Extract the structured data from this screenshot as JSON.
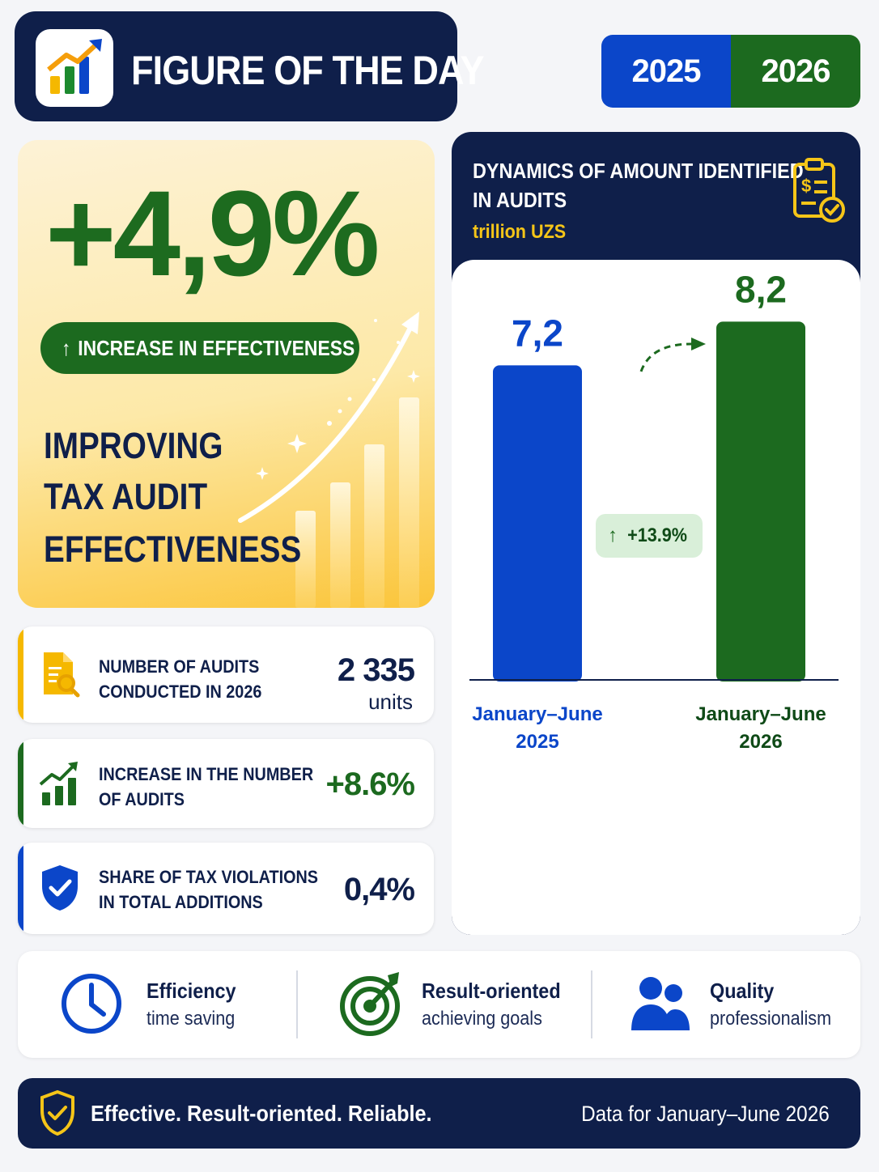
{
  "header": {
    "title": "FIGURE OF THE DAY",
    "year_left": "2025",
    "year_right": "2026"
  },
  "hero": {
    "big_value": "+4,9%",
    "pill_label": "INCREASE IN EFFECTIVENESS",
    "subtitle_lines": [
      "IMPROVING",
      "TAX AUDIT",
      "EFFECTIVENESS"
    ]
  },
  "stats": [
    {
      "label_lines": [
        "NUMBER OF AUDITS",
        "CONDUCTED IN 2026"
      ],
      "value": "2 335",
      "unit": "units",
      "icon": "document-search-icon",
      "accent": "#f5b800"
    },
    {
      "label_lines": [
        "INCREASE IN THE NUMBER",
        "OF AUDITS"
      ],
      "value": "+8.6%",
      "unit": "",
      "icon": "bar-growth-icon",
      "accent": "#1c6a1f"
    },
    {
      "label_lines": [
        "SHARE OF TAX VIOLATIONS",
        "IN TOTAL ADDITIONS"
      ],
      "value": "0,4%",
      "unit": "",
      "icon": "shield-check-icon",
      "accent": "#0b46c9"
    }
  ],
  "chart_panel": {
    "title_lines": [
      "DYNAMICS OF AMOUNT IDENTIFIED",
      "IN AUDITS"
    ],
    "unit": "trillion UZS",
    "icon": "clipboard-money-icon",
    "change_badge": "+13.9%"
  },
  "chart_data": {
    "type": "bar",
    "title": "DYNAMICS OF AMOUNT IDENTIFIED IN AUDITS",
    "ylabel": "trillion UZS",
    "categories": [
      [
        "January–June",
        "2025"
      ],
      [
        "January–June",
        "2026"
      ]
    ],
    "values": [
      7.2,
      8.2
    ],
    "value_labels": [
      "7,2",
      "8,2"
    ],
    "colors": [
      "#0b46c9",
      "#1c6a1f"
    ],
    "ylim": [
      0,
      8.8
    ],
    "grid": false,
    "legend": "none"
  },
  "features": [
    {
      "title": "Efficiency",
      "subtitle": "time saving",
      "icon": "clock-icon"
    },
    {
      "title": "Result-oriented",
      "subtitle": "achieving goals",
      "icon": "target-icon"
    },
    {
      "title": "Quality",
      "subtitle": "professionalism",
      "icon": "people-icon"
    }
  ],
  "footer": {
    "slogan": "Effective. Result-oriented. Reliable.",
    "note": "Data for January–June 2026",
    "icon": "shield-check-icon"
  },
  "colors": {
    "navy": "#0f1f4a",
    "blue": "#0b46c9",
    "green": "#1c6a1f",
    "gold": "#f5c518"
  }
}
